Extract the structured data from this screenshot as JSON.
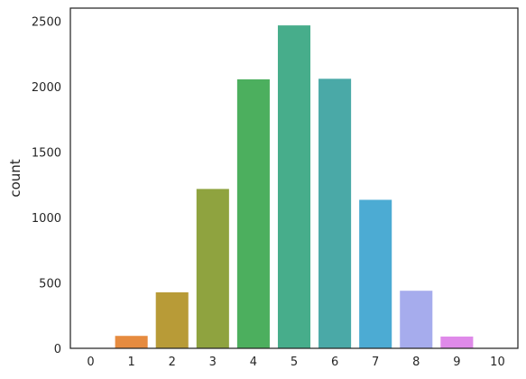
{
  "chart_data": {
    "type": "bar",
    "title": "",
    "xlabel": "",
    "ylabel": "count",
    "categories": [
      "0",
      "1",
      "2",
      "3",
      "4",
      "5",
      "6",
      "7",
      "8",
      "9",
      "10"
    ],
    "values": [
      2,
      95,
      428,
      1218,
      2056,
      2468,
      2060,
      1135,
      440,
      90,
      1
    ],
    "colors": [
      "#e9717c",
      "#e68b3f",
      "#b89b37",
      "#8fa33f",
      "#4caf5e",
      "#47ad8b",
      "#4aa9a7",
      "#4cabd3",
      "#a6aced",
      "#df8ae9",
      "#f27bd3"
    ],
    "ylim": [
      0,
      2600
    ],
    "yticks": [
      0,
      500,
      1000,
      1500,
      2000,
      2500
    ],
    "grid": false,
    "legend": "none"
  }
}
